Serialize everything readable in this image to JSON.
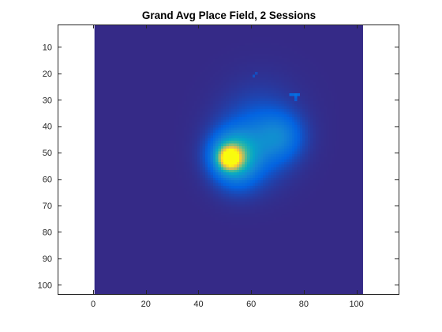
{
  "chart_data": {
    "type": "heatmap",
    "title": "Grand Avg Place Field, 2 Sessions",
    "xlabel": "",
    "ylabel": "",
    "xlim": [
      -13.5,
      116
    ],
    "ylim": [
      103.5,
      1.5
    ],
    "x_ticks": [
      0,
      20,
      40,
      60,
      80,
      100
    ],
    "y_ticks": [
      10,
      20,
      30,
      40,
      50,
      60,
      70,
      80,
      90,
      100
    ],
    "image_extent": {
      "x": [
        0.5,
        102.5
      ],
      "y": [
        0.5,
        103.5
      ]
    },
    "grid_size": [
      103,
      102
    ],
    "colormap": "parula",
    "background_value": 0,
    "peaks": [
      {
        "x": 52,
        "y": 52,
        "amplitude": 1.0,
        "sigma": 2.6
      },
      {
        "x": 53,
        "y": 51,
        "amplitude": 0.42,
        "sigma": 5.5
      },
      {
        "x": 60,
        "y": 48,
        "amplitude": 0.16,
        "sigma": 9.0
      },
      {
        "x": 71,
        "y": 44,
        "amplitude": 0.17,
        "sigma": 6.0
      },
      {
        "x": 55,
        "y": 58,
        "amplitude": 0.08,
        "sigma": 6.0
      },
      {
        "x": 64,
        "y": 36,
        "amplitude": 0.05,
        "sigma": 10.0
      }
    ],
    "hotspots": [
      {
        "x": 75,
        "y": 27.5,
        "value": 0.12
      },
      {
        "x": 76,
        "y": 27.5,
        "value": 0.12
      },
      {
        "x": 77,
        "y": 27.5,
        "value": 0.15
      },
      {
        "x": 78,
        "y": 27.5,
        "value": 0.12
      },
      {
        "x": 77,
        "y": 28.5,
        "value": 0.1
      },
      {
        "x": 77,
        "y": 29.5,
        "value": 0.08
      },
      {
        "x": 61,
        "y": 20.5,
        "value": 0.07
      },
      {
        "x": 62,
        "y": 19.5,
        "value": 0.06
      }
    ],
    "grid": false,
    "legend": "none"
  },
  "colors": {
    "background": "#ffffff",
    "axes_color": "#262626",
    "colormap_stops": [
      "#352a87",
      "#0363e1",
      "#1485d4",
      "#06a7c6",
      "#38b99e",
      "#92bf73",
      "#d9ba56",
      "#fcce2e",
      "#f9fb0e"
    ]
  }
}
